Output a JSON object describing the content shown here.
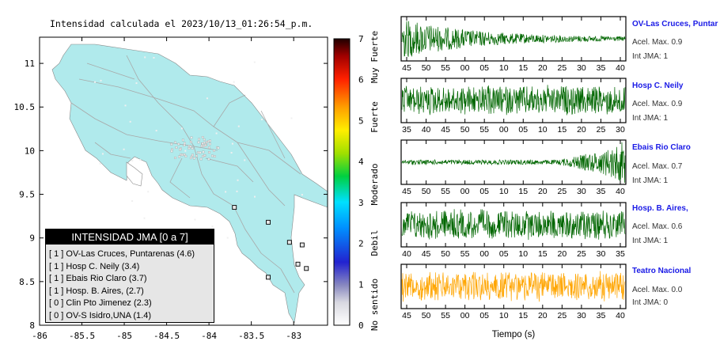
{
  "title": "Intensidad calculada el 2023/10/13_01:26:54_p.m.",
  "legend": {
    "title": "INTENSIDAD JMA [0 a 7]",
    "items": [
      "[ 1 ]  OV-Las Cruces, Puntarenas (4.6)",
      "[ 1 ]  Hosp C. Neily (3.4)",
      "[ 1 ]  Ebais Rio Claro (3.7)",
      "[ 1 ]  Hosp. B. Aires, (2.7)",
      "[ 0 ]  Clin Pto Jimenez (2.3)",
      "[ 0 ]  OV-S Isidro,UNA (1.4)"
    ]
  },
  "colors": {
    "land": "#b0eaec",
    "roads": "#a8a8a8",
    "trace_green": "#006600",
    "trace_orange": "#ffa500",
    "station_label": "#1a1ae6"
  },
  "colorbar": {
    "ticks": [
      "0",
      "1",
      "2",
      "3",
      "4",
      "5",
      "6",
      "7"
    ],
    "labels": [
      "No sentido",
      "Debil",
      "Moderado",
      "Fuerte",
      "Muy Fuerte"
    ]
  },
  "map_axes": {
    "x_ticks": [
      "-86",
      "-85.5",
      "-85",
      "-84.5",
      "-84",
      "-83.5",
      "-83"
    ],
    "y_ticks": [
      "8",
      "8.5",
      "9",
      "9.5",
      "10",
      "10.5",
      "11"
    ]
  },
  "waveform_xlabel": "Tiempo (s)",
  "stations": [
    {
      "name": "OV-Las Cruces, Puntar",
      "acel": "Acel. Max. 0.9",
      "jma": "Int JMA: 1",
      "ticks": [
        "45",
        "50",
        "55",
        "00",
        "05",
        "10",
        "15",
        "20",
        "25",
        "30",
        "35",
        "40"
      ]
    },
    {
      "name": "Hosp C. Neily",
      "acel": "Acel. Max. 0.9",
      "jma": "Int JMA: 1",
      "ticks": [
        "35",
        "40",
        "45",
        "50",
        "55",
        "00",
        "05",
        "10",
        "15",
        "20",
        "25",
        "30"
      ]
    },
    {
      "name": "Ebais Rio Claro",
      "acel": "Acel. Max. 0.7",
      "jma": "Int JMA: 1",
      "ticks": [
        "45",
        "50",
        "55",
        "00",
        "05",
        "10",
        "15",
        "20",
        "25",
        "30",
        "35",
        "40"
      ]
    },
    {
      "name": "Hosp. B. Aires,",
      "acel": "Acel. Max. 0.6",
      "jma": "Int JMA: 1",
      "ticks": [
        "40",
        "45",
        "50",
        "55",
        "00",
        "05",
        "10",
        "15",
        "20",
        "25",
        "30",
        "35"
      ]
    },
    {
      "name": "Teatro Nacional",
      "acel": "Acel. Max. 0.0",
      "jma": "Int JMA: 0",
      "ticks": [
        "45",
        "50",
        "55",
        "00",
        "05",
        "10",
        "15",
        "20",
        "25",
        "30",
        "35",
        "40"
      ]
    }
  ],
  "chart_data": [
    {
      "type": "scatter",
      "title": "Intensidad calculada el 2023/10/13_01:26:54_p.m.",
      "xlim": [
        -86,
        -82.6
      ],
      "ylim": [
        8,
        11.3
      ],
      "series": [
        {
          "name": "",
          "points": [
            [
              -82.9,
              8.92
            ],
            [
              -82.95,
              8.7
            ],
            [
              -83.3,
              8.55
            ],
            [
              -82.85,
              8.65
            ],
            [
              -83.05,
              8.95
            ],
            [
              -83.7,
              9.35
            ],
            [
              -83.3,
              9.18
            ]
          ]
        }
      ]
    },
    {
      "type": "line",
      "xlabel": "Tiempo (s)",
      "series": [
        {
          "name": "OV-Las Cruces, Puntar",
          "values": [
            0.9
          ]
        },
        {
          "name": "Hosp C. Neily",
          "values": [
            0.9
          ]
        },
        {
          "name": "Ebais Rio Claro",
          "values": [
            0.7
          ]
        },
        {
          "name": "Hosp. B. Aires,",
          "values": [
            0.6
          ]
        },
        {
          "name": "Teatro Nacional",
          "values": [
            0.0
          ]
        }
      ]
    }
  ]
}
